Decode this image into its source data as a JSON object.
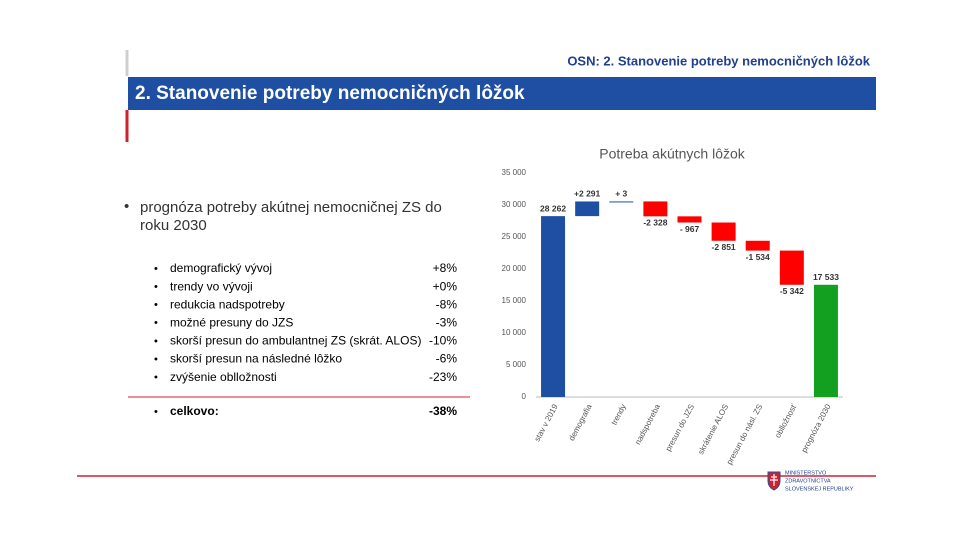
{
  "header": {
    "top_title": "OSN: 2. Stanovenie potreby nemocničných lôžok",
    "banner_title": "2. Stanovenie potreby nemocničných lôžok"
  },
  "main_bullet": [
    "prognóza potreby akútnej nemocničnej ZS do",
    "roku 2030"
  ],
  "items": [
    {
      "label": "demografický vývoj",
      "value": "+8%"
    },
    {
      "label": "trendy vo vývoji",
      "value": "+0%"
    },
    {
      "label": "redukcia nadspotreby",
      "value": "-8%"
    },
    {
      "label": "možné presuny do JZS",
      "value": "-3%"
    },
    {
      "label": "skorší presun do ambulantnej ZS (skrát. ALOS)",
      "value": "-10%"
    },
    {
      "label": "skorší presun na následné lôžko",
      "value": "-6%"
    },
    {
      "label": "zvýšenie oblložnosti",
      "value": "-23%"
    }
  ],
  "total": {
    "label": "celkovo:",
    "value": "-38%"
  },
  "logo": [
    "MINISTERSTVO",
    "ZDRAVOTNÍCTVA",
    "SLOVENSKEJ REPUBLIKY"
  ],
  "chart_data": {
    "type": "waterfall",
    "title": "Potreba akútnych lôžok",
    "categories": [
      "stav v 2019",
      "demografia",
      "trendy",
      "nadspotreba",
      "presun do JZS",
      "skrátenie ALOS",
      "presun do násl. ZS",
      "oblložnosť",
      "prognóza 2030"
    ],
    "values": [
      28262,
      2291,
      3,
      -2328,
      -967,
      -2851,
      -1534,
      -5342,
      17533
    ],
    "value_labels": [
      "28 262",
      "+2 291",
      "+ 3",
      "-2 328",
      "- 967",
      "-2 851",
      "-1 534",
      "-5 342",
      "17 533"
    ],
    "colors": [
      "#1f4fa3",
      "#1f4fa3",
      "#1f4fa3",
      "#ff0000",
      "#ff0000",
      "#ff0000",
      "#ff0000",
      "#ff0000",
      "#13a020"
    ],
    "ylim": [
      0,
      35000
    ],
    "yticks": [
      0,
      {
        "value": 5000,
        "label": "5 000"
      },
      {
        "value": 10000,
        "label": "10 000"
      },
      {
        "value": 15000,
        "label": "15 000"
      },
      {
        "value": 20000,
        "label": "20 000"
      },
      {
        "value": 25000,
        "label": "25 000"
      },
      {
        "value": 30000,
        "label": "30 000"
      },
      {
        "value": 35000,
        "label": "35 000"
      }
    ]
  }
}
